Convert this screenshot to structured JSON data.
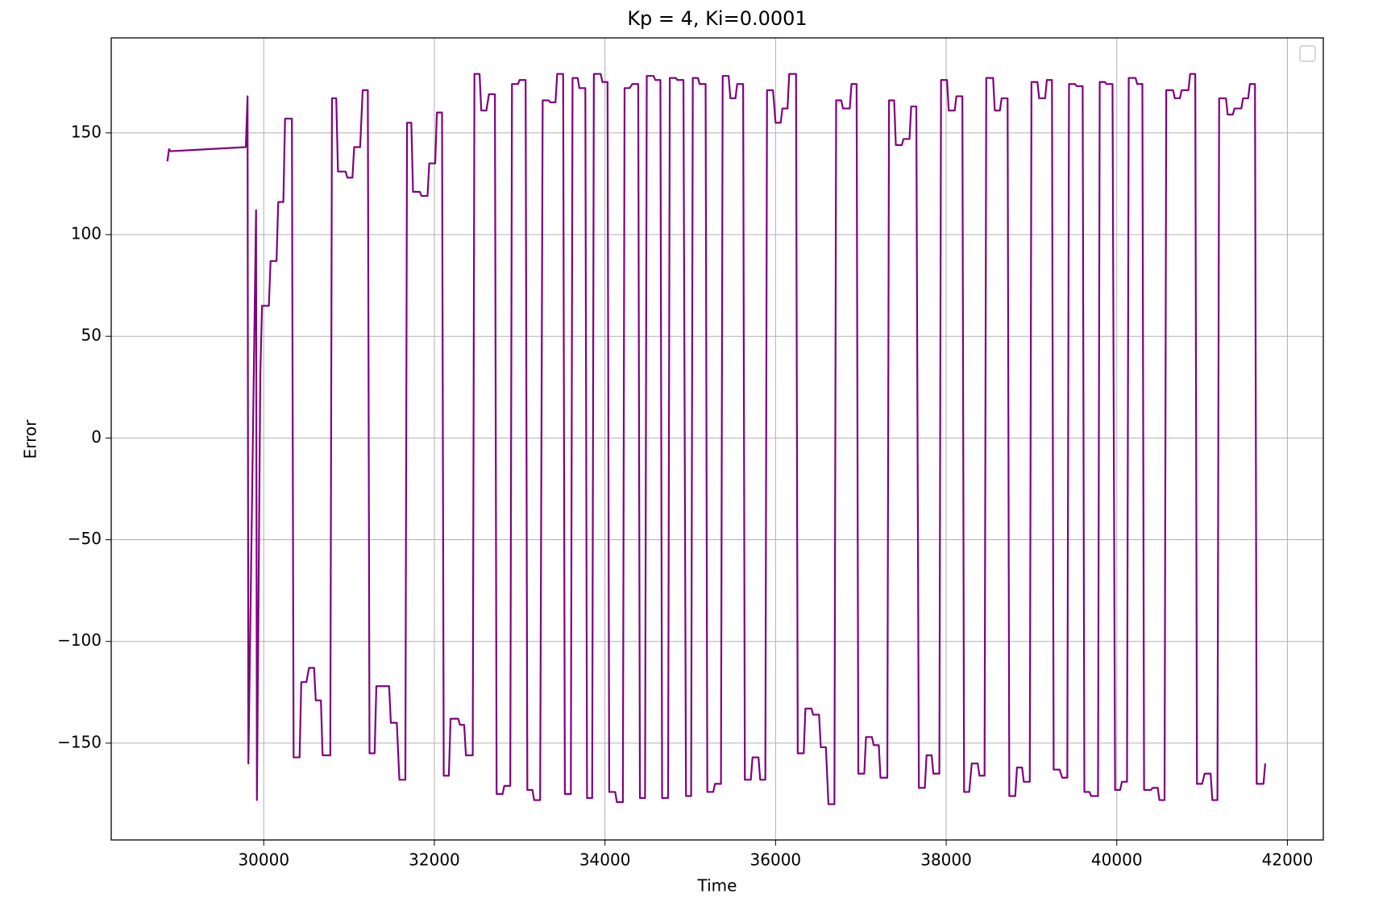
{
  "chart_data": {
    "type": "line",
    "title": "Kp = 4, Ki=0.0001",
    "x_label": "Time",
    "y_label": "Error",
    "color": "#800080",
    "grid": true,
    "xlim": [
      28212,
      42421
    ],
    "ylim": [
      -197.6,
      196.7
    ],
    "xticks": [
      30000,
      32000,
      34000,
      36000,
      38000,
      40000,
      42000
    ],
    "yticks": [
      {
        "value": -150,
        "label": "−150"
      },
      {
        "value": -100,
        "label": "−100"
      },
      {
        "value": -50,
        "label": "−50"
      },
      0,
      50,
      100,
      150
    ],
    "x": [
      28870,
      28890,
      28910,
      29790,
      29810,
      29820,
      29910,
      29920,
      29960,
      29980,
      30060,
      30080,
      30150,
      30170,
      30230,
      30250,
      30330,
      30350,
      30420,
      30440,
      30500,
      30530,
      30590,
      30610,
      30670,
      30690,
      30780,
      30800,
      30850,
      30870,
      30960,
      30980,
      31040,
      31060,
      31130,
      31160,
      31220,
      31240,
      31300,
      31320,
      31470,
      31490,
      31560,
      31590,
      31660,
      31680,
      31730,
      31750,
      31830,
      31850,
      31920,
      31940,
      32010,
      32030,
      32090,
      32110,
      32170,
      32190,
      32280,
      32300,
      32350,
      32370,
      32450,
      32470,
      32530,
      32550,
      32610,
      32640,
      32710,
      32730,
      32800,
      32820,
      32890,
      32910,
      32980,
      33000,
      33070,
      33090,
      33150,
      33170,
      33240,
      33270,
      33340,
      33360,
      33420,
      33440,
      33510,
      33530,
      33600,
      33620,
      33680,
      33700,
      33770,
      33790,
      33850,
      33870,
      33950,
      33970,
      34030,
      34050,
      34120,
      34140,
      34210,
      34230,
      34290,
      34320,
      34390,
      34410,
      34470,
      34490,
      34570,
      34590,
      34650,
      34670,
      34740,
      34760,
      34830,
      34850,
      34920,
      34950,
      35010,
      35030,
      35090,
      35110,
      35180,
      35200,
      35270,
      35290,
      35360,
      35380,
      35450,
      35470,
      35530,
      35550,
      35620,
      35640,
      35710,
      35730,
      35800,
      35820,
      35880,
      35900,
      35970,
      36000,
      36060,
      36080,
      36140,
      36160,
      36240,
      36260,
      36330,
      36350,
      36420,
      36440,
      36510,
      36530,
      36590,
      36620,
      36690,
      36710,
      36770,
      36790,
      36870,
      36890,
      36950,
      36970,
      37040,
      37060,
      37130,
      37150,
      37210,
      37230,
      37310,
      37330,
      37390,
      37410,
      37480,
      37500,
      37570,
      37590,
      37650,
      37680,
      37750,
      37770,
      37830,
      37850,
      37920,
      37940,
      38010,
      38030,
      38100,
      38120,
      38190,
      38210,
      38270,
      38300,
      38370,
      38390,
      38450,
      38470,
      38550,
      38570,
      38630,
      38650,
      38720,
      38740,
      38810,
      38830,
      38890,
      38910,
      38980,
      39000,
      39070,
      39090,
      39160,
      39180,
      39240,
      39260,
      39330,
      39360,
      39420,
      39440,
      39510,
      39530,
      39600,
      39620,
      39680,
      39700,
      39780,
      39800,
      39860,
      39880,
      39950,
      39980,
      40040,
      40060,
      40120,
      40140,
      40220,
      40240,
      40300,
      40320,
      40400,
      40420,
      40480,
      40500,
      40560,
      40580,
      40660,
      40680,
      40740,
      40760,
      40840,
      40860,
      40920,
      40940,
      41000,
      41030,
      41100,
      41120,
      41180,
      41200,
      41280,
      41300,
      41360,
      41380,
      41460,
      41480,
      41540,
      41560,
      41620,
      41640,
      41720,
      41740
    ],
    "values": [
      136,
      142,
      141,
      143,
      168,
      -160,
      112,
      -178,
      32,
      65,
      65,
      87,
      87,
      116,
      116,
      157,
      157,
      -157,
      -157,
      -120,
      -120,
      -113,
      -113,
      -129,
      -129,
      -156,
      -156,
      167,
      167,
      131,
      131,
      128,
      128,
      143,
      143,
      171,
      171,
      -155,
      -155,
      -122,
      -122,
      -140,
      -140,
      -168,
      -168,
      155,
      155,
      121,
      121,
      119,
      119,
      135,
      135,
      160,
      160,
      -166,
      -166,
      -138,
      -138,
      -141,
      -141,
      -156,
      -156,
      179,
      179,
      161,
      161,
      169,
      169,
      -175,
      -175,
      -171,
      -171,
      174,
      174,
      176,
      176,
      -173,
      -173,
      -178,
      -178,
      166,
      166,
      165,
      165,
      179,
      179,
      -175,
      -175,
      177,
      177,
      172,
      172,
      -177,
      -177,
      179,
      179,
      175,
      175,
      -174,
      -174,
      -179,
      -179,
      172,
      172,
      174,
      174,
      -177,
      -177,
      178,
      178,
      176,
      176,
      -177,
      -177,
      177,
      177,
      176,
      176,
      -176,
      -176,
      177,
      177,
      174,
      174,
      -174,
      -174,
      -170,
      -170,
      178,
      178,
      167,
      167,
      174,
      174,
      -168,
      -168,
      -157,
      -157,
      -168,
      -168,
      171,
      171,
      155,
      155,
      162,
      162,
      179,
      179,
      -155,
      -155,
      -133,
      -133,
      -136,
      -136,
      -152,
      -152,
      -180,
      -180,
      166,
      166,
      162,
      162,
      174,
      174,
      -165,
      -165,
      -147,
      -147,
      -151,
      -151,
      -167,
      -167,
      166,
      166,
      144,
      144,
      147,
      147,
      163,
      163,
      -172,
      -172,
      -156,
      -156,
      -165,
      -165,
      176,
      176,
      161,
      161,
      168,
      168,
      -174,
      -174,
      -160,
      -160,
      -166,
      -166,
      177,
      177,
      161,
      161,
      167,
      167,
      -176,
      -176,
      -162,
      -162,
      -169,
      -169,
      175,
      175,
      167,
      167,
      176,
      176,
      -163,
      -163,
      -167,
      -167,
      174,
      174,
      173,
      173,
      -174,
      -174,
      -176,
      -176,
      175,
      175,
      174,
      174,
      -173,
      -173,
      -169,
      -169,
      177,
      177,
      174,
      174,
      -173,
      -173,
      -172,
      -172,
      -178,
      -178,
      171,
      171,
      167,
      167,
      171,
      171,
      179,
      179,
      -170,
      -170,
      -165,
      -165,
      -178,
      -178,
      167,
      167,
      159,
      159,
      162,
      162,
      167,
      167,
      174,
      174,
      -170,
      -170,
      -160
    ]
  }
}
